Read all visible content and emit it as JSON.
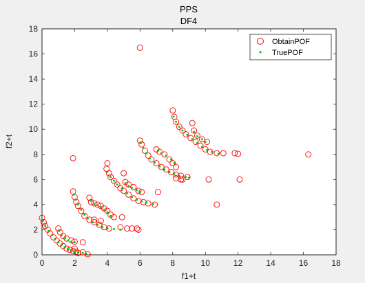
{
  "chart_data": {
    "type": "scatter",
    "title": "PPS",
    "subtitle": "DF4",
    "xlabel": "f1+t",
    "ylabel": "f2+t",
    "xlim": [
      0,
      18
    ],
    "ylim": [
      0,
      18
    ],
    "xticks": [
      0,
      2,
      4,
      6,
      8,
      10,
      12,
      14,
      16,
      18
    ],
    "yticks": [
      0,
      2,
      4,
      6,
      8,
      10,
      12,
      14,
      16,
      18
    ],
    "grid": false,
    "legend_position": "top-right",
    "series": [
      {
        "name": "ObtainPOF",
        "marker": "open-circle",
        "color": "#ff0000",
        "points": [
          [
            0.0,
            2.95
          ],
          [
            0.1,
            2.6
          ],
          [
            0.2,
            2.3
          ],
          [
            0.35,
            2.0
          ],
          [
            0.5,
            1.7
          ],
          [
            0.7,
            1.4
          ],
          [
            0.9,
            1.15
          ],
          [
            1.1,
            0.9
          ],
          [
            1.3,
            0.7
          ],
          [
            1.5,
            0.5
          ],
          [
            1.7,
            0.4
          ],
          [
            1.9,
            0.3
          ],
          [
            2.1,
            0.25
          ],
          [
            1.0,
            2.1
          ],
          [
            1.1,
            1.8
          ],
          [
            1.3,
            1.5
          ],
          [
            1.5,
            1.3
          ],
          [
            1.8,
            1.15
          ],
          [
            2.0,
            1.05
          ],
          [
            1.9,
            7.7
          ],
          [
            1.9,
            5.05
          ],
          [
            2.0,
            4.6
          ],
          [
            2.1,
            4.2
          ],
          [
            2.2,
            3.9
          ],
          [
            2.4,
            3.5
          ],
          [
            2.6,
            3.1
          ],
          [
            2.9,
            2.8
          ],
          [
            3.2,
            2.6
          ],
          [
            3.5,
            2.4
          ],
          [
            3.8,
            2.2
          ],
          [
            4.1,
            2.1
          ],
          [
            2.9,
            4.55
          ],
          [
            3.0,
            4.2
          ],
          [
            3.2,
            4.1
          ],
          [
            3.4,
            4.0
          ],
          [
            3.6,
            3.9
          ],
          [
            3.8,
            3.7
          ],
          [
            4.0,
            3.5
          ],
          [
            4.2,
            3.2
          ],
          [
            4.4,
            3.0
          ],
          [
            4.9,
            3.0
          ],
          [
            3.2,
            2.8
          ],
          [
            3.6,
            2.7
          ],
          [
            2.5,
            1.0
          ],
          [
            2.8,
            0.05
          ],
          [
            2.5,
            0.2
          ],
          [
            2.2,
            0.15
          ],
          [
            2.0,
            0.5
          ],
          [
            4.0,
            7.3
          ],
          [
            3.95,
            6.85
          ],
          [
            4.1,
            6.5
          ],
          [
            4.2,
            6.2
          ],
          [
            4.4,
            5.9
          ],
          [
            4.6,
            5.6
          ],
          [
            4.8,
            5.3
          ],
          [
            5.0,
            5.1
          ],
          [
            5.3,
            4.8
          ],
          [
            5.6,
            4.5
          ],
          [
            5.9,
            4.3
          ],
          [
            6.2,
            4.2
          ],
          [
            6.5,
            4.1
          ],
          [
            6.9,
            4.0
          ],
          [
            5.0,
            6.5
          ],
          [
            5.1,
            5.8
          ],
          [
            5.3,
            5.6
          ],
          [
            5.6,
            5.4
          ],
          [
            5.9,
            5.1
          ],
          [
            6.1,
            5.0
          ],
          [
            5.5,
            2.1
          ],
          [
            5.8,
            2.1
          ],
          [
            5.9,
            2.0
          ],
          [
            5.2,
            2.1
          ],
          [
            4.8,
            2.2
          ],
          [
            6.0,
            16.5
          ],
          [
            6.0,
            9.1
          ],
          [
            6.1,
            8.8
          ],
          [
            6.3,
            8.3
          ],
          [
            6.5,
            7.9
          ],
          [
            6.7,
            7.6
          ],
          [
            7.0,
            7.3
          ],
          [
            7.3,
            7.0
          ],
          [
            7.6,
            6.8
          ],
          [
            7.9,
            6.6
          ],
          [
            8.2,
            6.4
          ],
          [
            8.5,
            6.3
          ],
          [
            8.9,
            6.2
          ],
          [
            7.0,
            8.4
          ],
          [
            7.2,
            8.2
          ],
          [
            7.5,
            8.0
          ],
          [
            7.8,
            7.6
          ],
          [
            8.0,
            7.3
          ],
          [
            8.2,
            7.0
          ],
          [
            7.1,
            5.0
          ],
          [
            8.2,
            6.1
          ],
          [
            8.5,
            6.0
          ],
          [
            8.6,
            6.0
          ],
          [
            8.0,
            11.5
          ],
          [
            8.1,
            11.0
          ],
          [
            8.2,
            10.6
          ],
          [
            8.4,
            10.2
          ],
          [
            8.6,
            9.9
          ],
          [
            8.8,
            9.6
          ],
          [
            9.1,
            9.3
          ],
          [
            9.4,
            9.0
          ],
          [
            9.7,
            8.7
          ],
          [
            10.0,
            8.4
          ],
          [
            10.3,
            8.2
          ],
          [
            10.7,
            8.1
          ],
          [
            11.1,
            8.1
          ],
          [
            9.2,
            10.5
          ],
          [
            9.3,
            9.9
          ],
          [
            9.5,
            9.5
          ],
          [
            9.8,
            9.2
          ],
          [
            10.1,
            9.0
          ],
          [
            10.2,
            6.0
          ],
          [
            10.7,
            4.0
          ],
          [
            11.8,
            8.1
          ],
          [
            12.0,
            8.05
          ],
          [
            12.1,
            6.0
          ],
          [
            16.3,
            8.0
          ]
        ]
      },
      {
        "name": "TruePOF",
        "marker": "dot",
        "color": "#00cc00",
        "points": [
          [
            0.05,
            2.7
          ],
          [
            0.2,
            2.3
          ],
          [
            0.4,
            1.9
          ],
          [
            0.6,
            1.55
          ],
          [
            0.8,
            1.25
          ],
          [
            1.0,
            1.0
          ],
          [
            1.2,
            0.8
          ],
          [
            1.4,
            0.6
          ],
          [
            1.6,
            0.45
          ],
          [
            1.8,
            0.35
          ],
          [
            2.0,
            0.25
          ],
          [
            2.2,
            0.2
          ],
          [
            2.5,
            0.15
          ],
          [
            2.7,
            0.1
          ],
          [
            1.05,
            1.9
          ],
          [
            1.2,
            1.55
          ],
          [
            1.4,
            1.3
          ],
          [
            1.6,
            1.15
          ],
          [
            1.8,
            1.05
          ],
          [
            2.0,
            1.0
          ],
          [
            1.95,
            4.8
          ],
          [
            2.05,
            4.4
          ],
          [
            2.2,
            4.0
          ],
          [
            2.4,
            3.6
          ],
          [
            2.6,
            3.2
          ],
          [
            2.8,
            2.9
          ],
          [
            3.1,
            2.6
          ],
          [
            3.4,
            2.4
          ],
          [
            3.7,
            2.2
          ],
          [
            4.0,
            2.1
          ],
          [
            4.4,
            2.05
          ],
          [
            4.8,
            2.0
          ],
          [
            3.0,
            4.3
          ],
          [
            3.2,
            4.05
          ],
          [
            3.4,
            3.95
          ],
          [
            3.6,
            3.8
          ],
          [
            3.8,
            3.6
          ],
          [
            4.0,
            3.4
          ],
          [
            4.2,
            3.1
          ],
          [
            4.0,
            6.6
          ],
          [
            4.2,
            6.2
          ],
          [
            4.4,
            5.9
          ],
          [
            4.6,
            5.6
          ],
          [
            4.9,
            5.3
          ],
          [
            5.2,
            4.9
          ],
          [
            5.5,
            4.6
          ],
          [
            5.8,
            4.4
          ],
          [
            6.1,
            4.25
          ],
          [
            6.4,
            4.15
          ],
          [
            6.8,
            4.05
          ],
          [
            5.1,
            5.7
          ],
          [
            5.3,
            5.5
          ],
          [
            5.5,
            5.35
          ],
          [
            5.8,
            5.15
          ],
          [
            6.0,
            5.0
          ],
          [
            6.05,
            8.9
          ],
          [
            6.2,
            8.5
          ],
          [
            6.4,
            8.1
          ],
          [
            6.6,
            7.7
          ],
          [
            6.9,
            7.35
          ],
          [
            7.2,
            7.05
          ],
          [
            7.5,
            6.8
          ],
          [
            7.8,
            6.6
          ],
          [
            8.1,
            6.45
          ],
          [
            8.4,
            6.3
          ],
          [
            8.8,
            6.2
          ],
          [
            9.0,
            6.15
          ],
          [
            7.1,
            8.3
          ],
          [
            7.3,
            8.1
          ],
          [
            7.6,
            7.9
          ],
          [
            7.9,
            7.6
          ],
          [
            8.1,
            7.3
          ],
          [
            8.05,
            11.0
          ],
          [
            8.2,
            10.6
          ],
          [
            8.4,
            10.2
          ],
          [
            8.6,
            9.9
          ],
          [
            8.9,
            9.55
          ],
          [
            9.2,
            9.2
          ],
          [
            9.5,
            8.9
          ],
          [
            9.8,
            8.6
          ],
          [
            10.1,
            8.35
          ],
          [
            10.4,
            8.2
          ],
          [
            10.8,
            8.05
          ],
          [
            9.3,
            9.8
          ],
          [
            9.5,
            9.45
          ],
          [
            9.8,
            9.2
          ],
          [
            10.0,
            9.0
          ]
        ]
      }
    ]
  }
}
